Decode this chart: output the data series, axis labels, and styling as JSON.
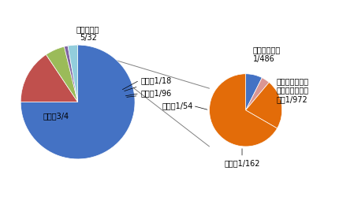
{
  "main_values": [
    0.75,
    0.15625,
    0.05556,
    0.01042,
    0.0026,
    0.02316
  ],
  "main_colors": [
    "#4472C4",
    "#C0504D",
    "#9BBB59",
    "#8064A2",
    "#92CDDC",
    "#C0C0C0"
  ],
  "main_labels_text": [
    "自身，3/4",
    "燧石碎片，\n5/32",
    "铜粒，1/18",
    "磁石，1/96",
    "",
    ""
  ],
  "secondary_values": [
    0.002058,
    0.001029,
    0.006173,
    0.018519
  ],
  "secondary_colors": [
    "#4472C4",
    "#DA9694",
    "#E36C09",
    "#E36C09"
  ],
  "secondary_labels": [
    "黑曜石碎片，\n1/486",
    "绿宝石、钻石、\n秘银、阿德曼合\n金，1/972",
    "金粒，1/162",
    "银粒，1/54"
  ],
  "bg_color": "#FFFFFF",
  "font_size": 7.0
}
